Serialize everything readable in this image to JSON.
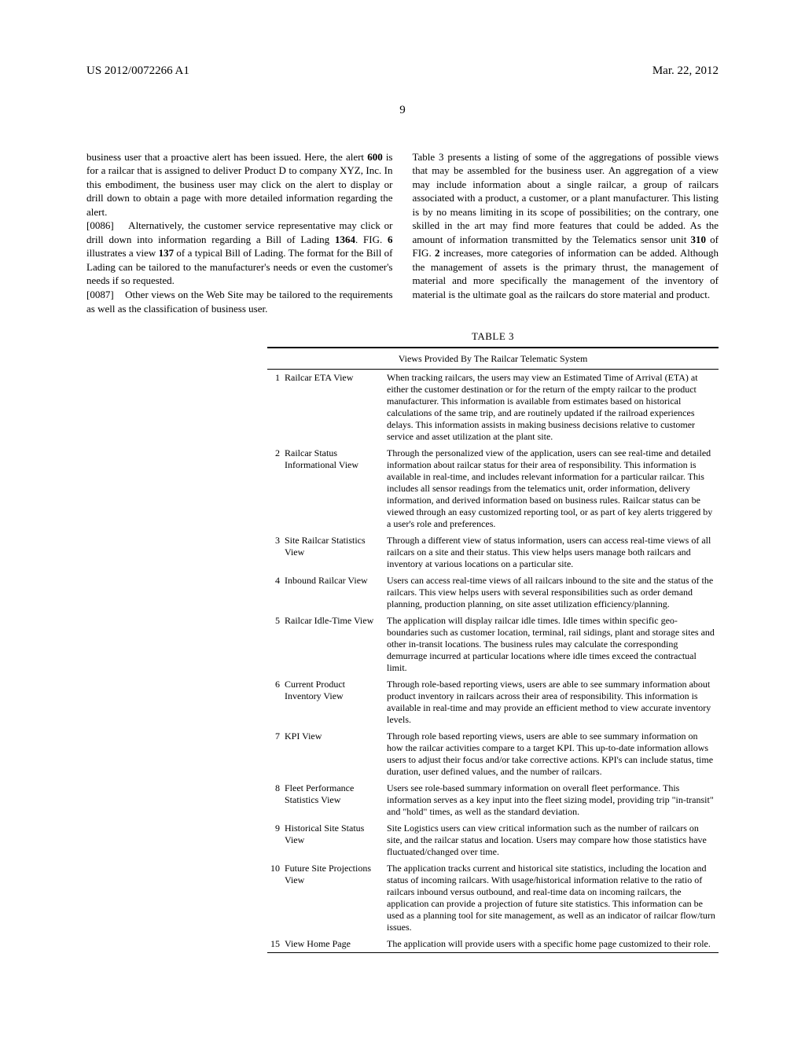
{
  "header": {
    "pub_number": "US 2012/0072266 A1",
    "pub_date": "Mar. 22, 2012",
    "page_number": "9"
  },
  "left_column": {
    "p1_a": "business user that a proactive alert has been issued. Here, the alert ",
    "p1_b": "600",
    "p1_c": " is for a railcar that is assigned to deliver Product D to company XYZ, Inc. In this embodiment, the business user may click on the alert to display or drill down to obtain a page with more detailed information regarding the alert.",
    "p2_label": "[0086]",
    "p2_a": " Alternatively, the customer service representative may click or drill down into information regarding a Bill of Lading ",
    "p2_b": "1364",
    "p2_c": ". FIG. ",
    "p2_d": "6",
    "p2_e": " illustrates a view ",
    "p2_f": "137",
    "p2_g": " of a typical Bill of Lading. The format for the Bill of Lading can be tailored to the manufacturer's needs or even the customer's needs if so requested.",
    "p3_label": "[0087]",
    "p3_a": " Other views on the Web Site may be tailored to the requirements as well as the classification of business user."
  },
  "right_column": {
    "p1_a": "Table 3 presents a listing of some of the aggregations of possible views that may be assembled for the business user. An aggregation of a view may include information about a single railcar, a group of railcars associated with a product, a customer, or a plant manufacturer. This listing is by no means limiting in its scope of possibilities; on the contrary, one skilled in the art may find more features that could be added. As the amount of information transmitted by the Telematics sensor unit ",
    "p1_b": "310",
    "p1_c": " of FIG. ",
    "p1_d": "2",
    "p1_e": " increases, more categories of information can be added. Although the management of assets is the primary thrust, the management of material and more specifically the management of the inventory of material is the ultimate goal as the railcars do store material and product."
  },
  "table": {
    "caption": "TABLE 3",
    "subcaption": "Views Provided By The Railcar Telematic System",
    "rows": [
      {
        "num": "1",
        "name": "Railcar ETA View",
        "desc": "When tracking railcars, the users may view an Estimated Time of Arrival (ETA) at either the customer destination or for the return of the empty railcar to the product manufacturer. This information is available from estimates based on historical calculations of the same trip, and are routinely updated if the railroad experiences delays. This information assists in making business decisions relative to customer service and asset utilization at the plant site."
      },
      {
        "num": "2",
        "name": "Railcar Status Informational View",
        "desc": "Through the personalized view of the application, users can see real-time and detailed information about railcar status for their area of responsibility. This information is available in real-time, and includes relevant information for a particular railcar. This includes all sensor readings from the telematics unit, order information, delivery information, and derived information based on business rules. Railcar status can be viewed through an easy customized reporting tool, or as part of key alerts triggered by a user's role and preferences."
      },
      {
        "num": "3",
        "name": "Site Railcar Statistics View",
        "desc": "Through a different view of status information, users can access real-time views of all railcars on a site and their status. This view helps users manage both railcars and inventory at various locations on a particular site."
      },
      {
        "num": "4",
        "name": "Inbound Railcar View",
        "desc": "Users can access real-time views of all railcars inbound to the site and the status of the railcars. This view helps users with several responsibilities such as order demand planning, production planning, on site asset utilization efficiency/planning."
      },
      {
        "num": "5",
        "name": "Railcar Idle-Time View",
        "desc": "The application will display railcar idle times. Idle times within specific geo-boundaries such as customer location, terminal, rail sidings, plant and storage sites and other in-transit locations. The business rules may calculate the corresponding demurrage incurred at particular locations where idle times exceed the contractual limit."
      },
      {
        "num": "6",
        "name": "Current Product Inventory View",
        "desc": "Through role-based reporting views, users are able to see summary information about product inventory in railcars across their area of responsibility. This information is available in real-time and may provide an efficient method to view accurate inventory levels."
      },
      {
        "num": "7",
        "name": "KPI View",
        "desc": "Through role based reporting views, users are able to see summary information on how the railcar activities compare to a target KPI. This up-to-date information allows users to adjust their focus and/or take corrective actions. KPI's can include status, time duration, user defined values, and the number of railcars."
      },
      {
        "num": "8",
        "name": "Fleet Performance Statistics View",
        "desc": "Users see role-based summary information on overall fleet performance. This information serves as a key input into the fleet sizing model, providing trip \"in-transit\" and \"hold\" times, as well as the standard deviation."
      },
      {
        "num": "9",
        "name": "Historical Site Status View",
        "desc": "Site Logistics users can view critical information such as the number of railcars on site, and the railcar status and location. Users may compare how those statistics have fluctuated/changed over time."
      },
      {
        "num": "10",
        "name": "Future Site Projections View",
        "desc": "The application tracks current and historical site statistics, including the location and status of incoming railcars. With usage/historical information relative to the ratio of railcars inbound versus outbound, and real-time data on incoming railcars, the application can provide a projection of future site statistics. This information can be used as a planning tool for site management, as well as an indicator of railcar flow/turn issues."
      },
      {
        "num": "15",
        "name": "View Home Page",
        "desc": "The application will provide users with a specific home page customized to their role."
      }
    ]
  }
}
